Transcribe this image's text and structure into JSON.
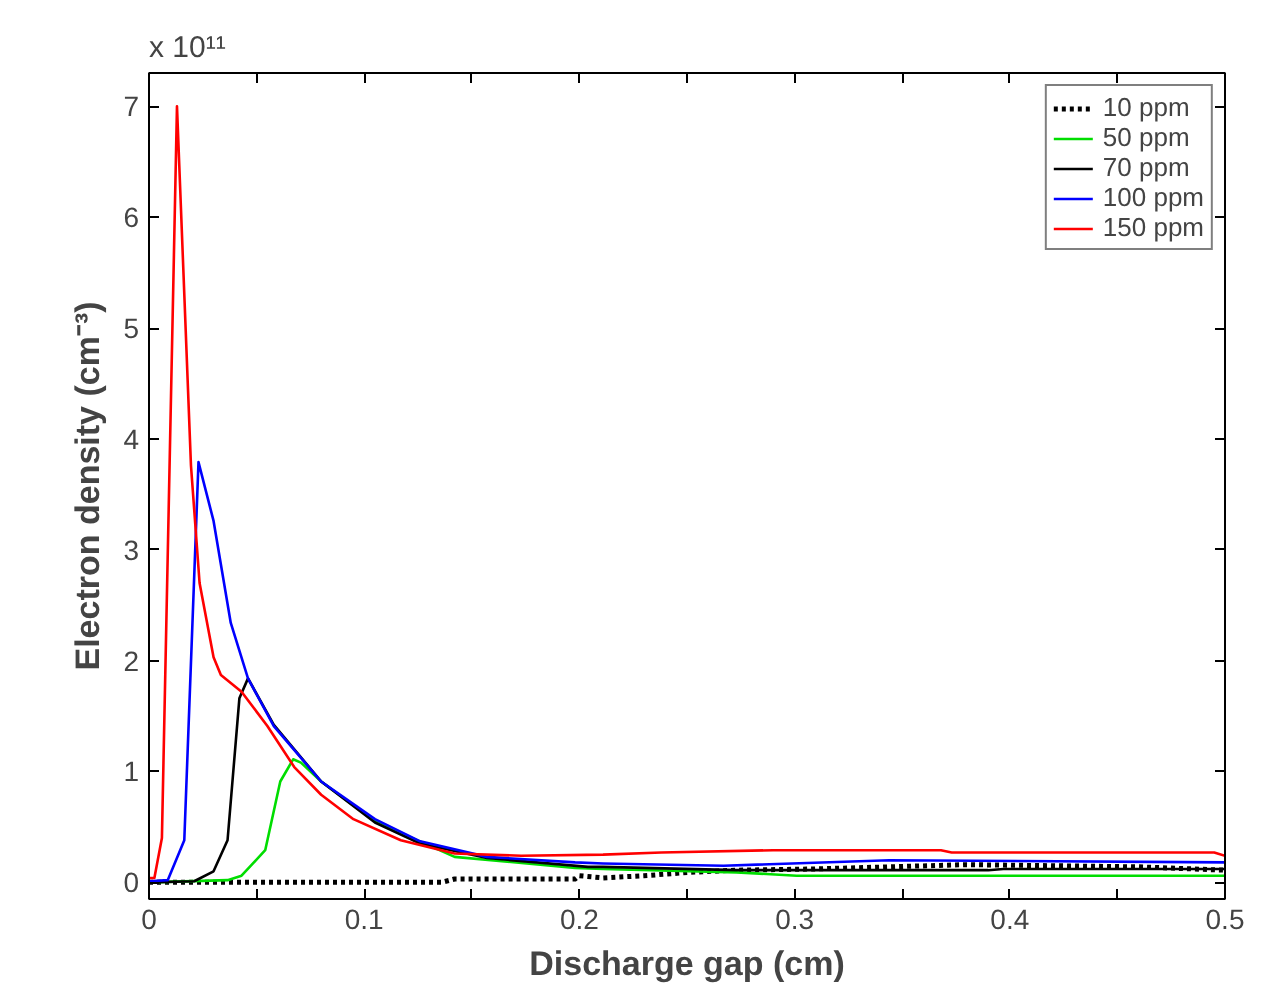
{
  "chart_data": {
    "type": "line",
    "xlabel": "Discharge gap (cm)",
    "ylabel": "Electron density (cm⁻³)",
    "annotations": [
      "x 10¹¹"
    ],
    "xlim": [
      0,
      0.5
    ],
    "ylim": [
      -0.15,
      7.3
    ],
    "xticks": [
      0,
      {
        "value": 0.05,
        "label": null
      },
      0.1,
      {
        "value": 0.15,
        "label": null
      },
      0.2,
      {
        "value": 0.25,
        "label": null
      },
      0.3,
      {
        "value": 0.35,
        "label": null
      },
      0.4,
      {
        "value": 0.45,
        "label": null
      },
      0.5
    ],
    "yticks": [
      0,
      1,
      2,
      3,
      4,
      5,
      6,
      7
    ],
    "grid": false,
    "legend": "top right",
    "series": [
      {
        "name": "10 ppm",
        "color": "#000000",
        "line_style": "dotted",
        "x": [
          0,
          0.136,
          0.142,
          0.198,
          0.2,
          0.211,
          0.23,
          0.251,
          0.273,
          0.307,
          0.344,
          0.38,
          0.46,
          0.5
        ],
        "values": [
          0,
          0,
          0.03,
          0.03,
          0.06,
          0.04,
          0.06,
          0.09,
          0.11,
          0.12,
          0.14,
          0.16,
          0.14,
          0.11
        ]
      },
      {
        "name": "50 ppm",
        "color": "#00dd00",
        "x": [
          0,
          0.0365,
          0.043,
          0.054,
          0.061,
          0.067,
          0.0706,
          0.08,
          0.105,
          0.142,
          0.198,
          0.211,
          0.273,
          0.301,
          0.5
        ],
        "values": [
          0,
          0.02,
          0.06,
          0.29,
          0.91,
          1.11,
          1.08,
          0.91,
          0.55,
          0.23,
          0.13,
          0.12,
          0.09,
          0.06,
          0.06
        ]
      },
      {
        "name": "70 ppm",
        "color": "#000000",
        "x": [
          0,
          0.021,
          0.03,
          0.0365,
          0.042,
          0.046,
          0.058,
          0.08,
          0.105,
          0.126,
          0.157,
          0.204,
          0.211,
          0.273,
          0.39,
          0.397,
          0.5
        ],
        "values": [
          0,
          0.01,
          0.1,
          0.38,
          1.66,
          1.84,
          1.42,
          0.91,
          0.54,
          0.35,
          0.22,
          0.14,
          0.14,
          0.11,
          0.11,
          0.12,
          0.12
        ]
      },
      {
        "name": "100 ppm",
        "color": "#0000ff",
        "x": [
          0,
          0.0087,
          0.0164,
          0.023,
          0.03,
          0.038,
          0.046,
          0.058,
          0.08,
          0.105,
          0.126,
          0.157,
          0.198,
          0.211,
          0.267,
          0.344,
          0.5
        ],
        "values": [
          0.01,
          0.02,
          0.38,
          3.79,
          3.26,
          2.34,
          1.84,
          1.41,
          0.91,
          0.57,
          0.37,
          0.23,
          0.18,
          0.17,
          0.15,
          0.2,
          0.18
        ]
      },
      {
        "name": "150 ppm",
        "color": "#ff0000",
        "x": [
          0,
          0.0025,
          0.006,
          0.013,
          0.0195,
          0.0235,
          0.03,
          0.0334,
          0.043,
          0.055,
          0.0675,
          0.08,
          0.095,
          0.117,
          0.142,
          0.173,
          0.211,
          0.238,
          0.29,
          0.368,
          0.373,
          0.495,
          0.5
        ],
        "values": [
          0.04,
          0.04,
          0.4,
          7.0,
          3.76,
          2.7,
          2.03,
          1.87,
          1.72,
          1.41,
          1.04,
          0.79,
          0.57,
          0.38,
          0.26,
          0.24,
          0.25,
          0.27,
          0.29,
          0.29,
          0.27,
          0.27,
          0.24
        ]
      }
    ]
  }
}
